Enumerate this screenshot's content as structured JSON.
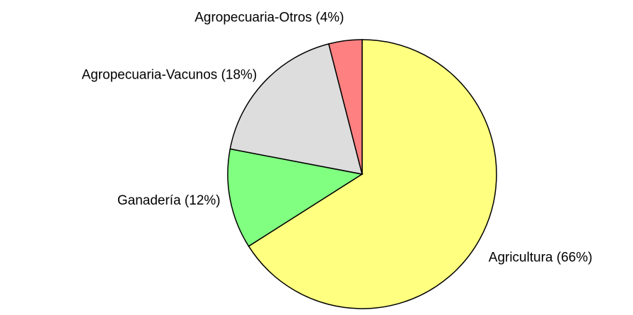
{
  "chart_data": {
    "type": "pie",
    "categories": [
      "Agricultura (66%)",
      "Ganadería (12%)",
      "Agropecuaria-Vacunos (18%)",
      "Agropecuaria-Otros (4%)"
    ],
    "values": [
      66,
      12,
      18,
      4
    ],
    "colors": [
      "#ffff80",
      "#80ff80",
      "#dddddd",
      "#ff8080"
    ]
  }
}
